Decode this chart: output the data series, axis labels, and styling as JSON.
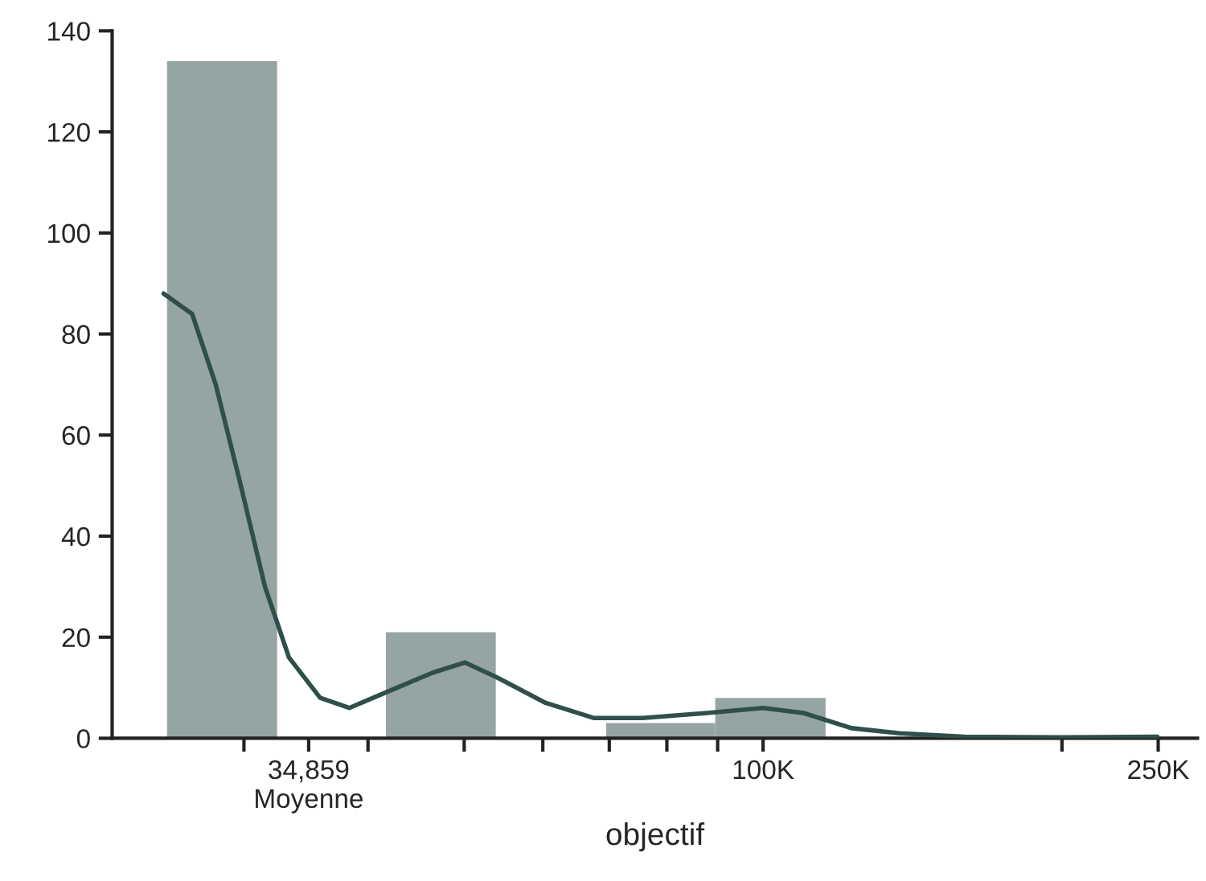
{
  "chart_data": {
    "type": "histogram",
    "xlabel": "objectif",
    "log": "x",
    "color": "#95a5a3",
    "bins": [
      25100,
      32400,
      41700,
      53800,
      69500,
      89500,
      115600
    ],
    "values": [
      134,
      0,
      21,
      0,
      3,
      8
    ],
    "series": [
      {
        "type": "line",
        "color": "#2f4f4a",
        "x": [
          24900,
          26600,
          28100,
          29700,
          31500,
          33300,
          35800,
          38300,
          41600,
          46500,
          50100,
          54000,
          60400,
          67600,
          75600,
          87800,
          100000,
          109800,
          122800,
          137300,
          159400,
          200000,
          249500
        ],
        "values": [
          88,
          84,
          70,
          51,
          30,
          16,
          8,
          6,
          9,
          13,
          15,
          12,
          7,
          4,
          4,
          5,
          6,
          5,
          2,
          1,
          0.3,
          0.2,
          0.3
        ]
      }
    ],
    "xlim": [
      22100,
      273900
    ],
    "xticks": [
      {
        "value": 30000,
        "label": null
      },
      {
        "value": 34859,
        "label": "34,859\nMoyenne"
      },
      {
        "value": 40000,
        "label": null
      },
      {
        "value": 50000,
        "label": null
      },
      {
        "value": 60000,
        "label": null
      },
      {
        "value": 70000,
        "label": null
      },
      {
        "value": 80000,
        "label": null
      },
      {
        "value": 90000,
        "label": null
      },
      {
        "value": 100000,
        "label": "100K"
      },
      {
        "value": 200000,
        "label": null
      },
      {
        "value": 250000,
        "label": "250K"
      }
    ],
    "ylim": [
      0,
      140
    ],
    "yticks": [
      0,
      20,
      40,
      60,
      80,
      100,
      120,
      140
    ],
    "grid": false,
    "legend": false
  }
}
